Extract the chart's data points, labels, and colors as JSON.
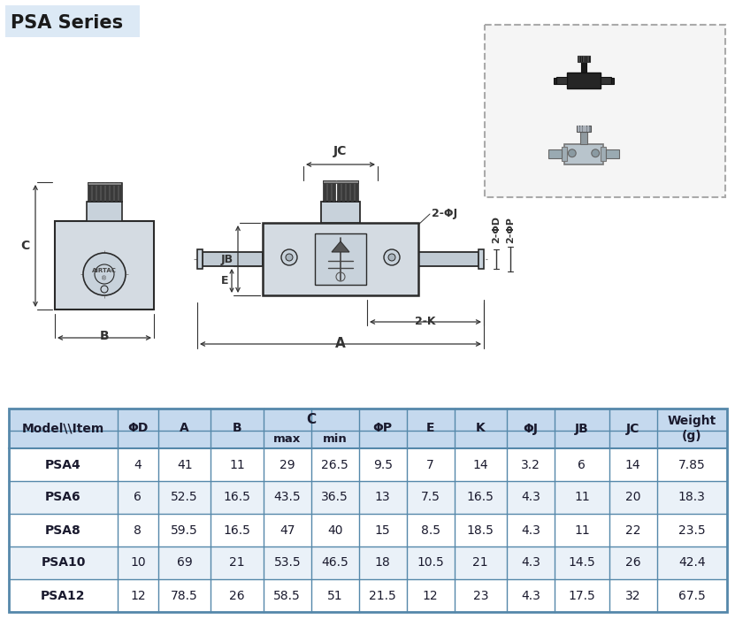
{
  "title": "PSA Series",
  "title_bg": "#dce9f5",
  "table_header_bg": "#c5d9ee",
  "table_row_bg_even": "#ffffff",
  "table_row_bg_odd": "#eaf1f8",
  "table_border": "#5588aa",
  "col_headers_line1": [
    "Model\\\\Item",
    "ΦD",
    "A",
    "B",
    "C",
    "",
    "ΦP",
    "E",
    "K",
    "ΦJ",
    "JB",
    "JC",
    "Weight\n(g)"
  ],
  "col_headers_line2": [
    "",
    "",
    "",
    "",
    "max",
    "min",
    "",
    "",
    "",
    "",
    "",
    "",
    ""
  ],
  "rows": [
    [
      "PSA4",
      "4",
      "41",
      "11",
      "29",
      "26.5",
      "9.5",
      "7",
      "14",
      "3.2",
      "6",
      "14",
      "7.85"
    ],
    [
      "PSA6",
      "6",
      "52.5",
      "16.5",
      "43.5",
      "36.5",
      "13",
      "7.5",
      "16.5",
      "4.3",
      "11",
      "20",
      "18.3"
    ],
    [
      "PSA8",
      "8",
      "59.5",
      "16.5",
      "47",
      "40",
      "15",
      "8.5",
      "18.5",
      "4.3",
      "11",
      "22",
      "23.5"
    ],
    [
      "PSA10",
      "10",
      "69",
      "21",
      "53.5",
      "46.5",
      "18",
      "10.5",
      "21",
      "4.3",
      "14.5",
      "26",
      "42.4"
    ],
    [
      "PSA12",
      "12",
      "78.5",
      "26",
      "58.5",
      "51",
      "21.5",
      "12",
      "23",
      "4.3",
      "17.5",
      "32",
      "67.5"
    ]
  ],
  "bg_color": "#ffffff",
  "line_color": "#2a2a2a",
  "dim_color": "#333333",
  "body_fill": "#d4dbe2",
  "body_fill2": "#c8d2db",
  "knob_fill": "#3a3a3a",
  "tube_fill": "#c0cad3",
  "photo_border": "#aaaaaa"
}
